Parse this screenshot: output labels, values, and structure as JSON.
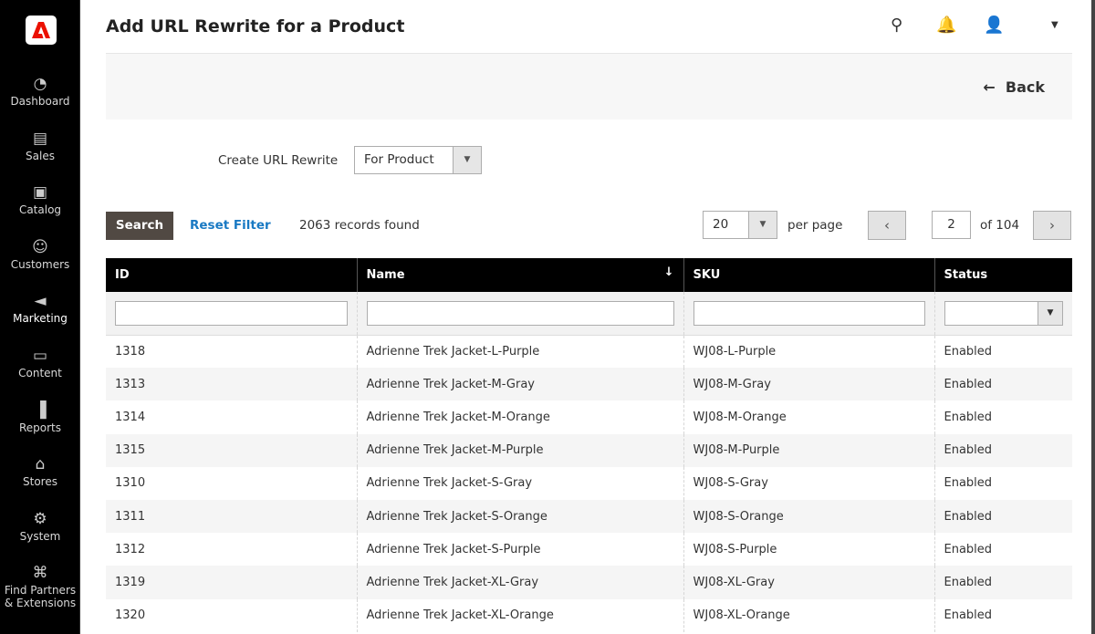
{
  "sidebar": {
    "items": [
      {
        "label": "Dashboard",
        "icon": "dashboard-icon"
      },
      {
        "label": "Sales",
        "icon": "sales-icon"
      },
      {
        "label": "Catalog",
        "icon": "catalog-icon"
      },
      {
        "label": "Customers",
        "icon": "customers-icon"
      },
      {
        "label": "Marketing",
        "icon": "marketing-icon"
      },
      {
        "label": "Content",
        "icon": "content-icon"
      },
      {
        "label": "Reports",
        "icon": "reports-icon"
      },
      {
        "label": "Stores",
        "icon": "stores-icon"
      },
      {
        "label": "System",
        "icon": "system-icon"
      },
      {
        "label": "Find Partners & Extensions",
        "icon": "partners-icon"
      }
    ]
  },
  "header": {
    "title": "Add URL Rewrite for a Product"
  },
  "actions": {
    "back": "Back"
  },
  "form": {
    "create_label": "Create URL Rewrite",
    "create_value": "For Product"
  },
  "grid": {
    "search": "Search",
    "reset": "Reset Filter",
    "records": "2063 records found",
    "per_page_value": "20",
    "per_page_label": "per page",
    "page": "2",
    "of_pages": "of 104",
    "columns": [
      "ID",
      "Name",
      "SKU",
      "Status"
    ],
    "rows": [
      [
        "1318",
        "Adrienne Trek Jacket-L-Purple",
        "WJ08-L-Purple",
        "Enabled"
      ],
      [
        "1313",
        "Adrienne Trek Jacket-M-Gray",
        "WJ08-M-Gray",
        "Enabled"
      ],
      [
        "1314",
        "Adrienne Trek Jacket-M-Orange",
        "WJ08-M-Orange",
        "Enabled"
      ],
      [
        "1315",
        "Adrienne Trek Jacket-M-Purple",
        "WJ08-M-Purple",
        "Enabled"
      ],
      [
        "1310",
        "Adrienne Trek Jacket-S-Gray",
        "WJ08-S-Gray",
        "Enabled"
      ],
      [
        "1311",
        "Adrienne Trek Jacket-S-Orange",
        "WJ08-S-Orange",
        "Enabled"
      ],
      [
        "1312",
        "Adrienne Trek Jacket-S-Purple",
        "WJ08-S-Purple",
        "Enabled"
      ],
      [
        "1319",
        "Adrienne Trek Jacket-XL-Gray",
        "WJ08-XL-Gray",
        "Enabled"
      ],
      [
        "1320",
        "Adrienne Trek Jacket-XL-Orange",
        "WJ08-XL-Orange",
        "Enabled"
      ]
    ]
  },
  "colors": {
    "sidebar": "#000000",
    "search_button": "#514943",
    "link": "#1979c3",
    "logo": "#eb1000"
  }
}
